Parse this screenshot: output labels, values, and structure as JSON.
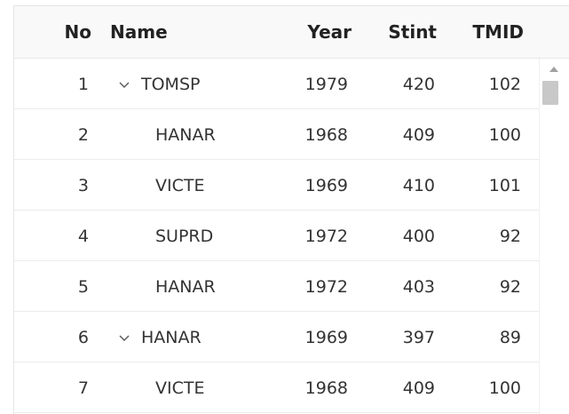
{
  "columns": {
    "no": "No",
    "name": "Name",
    "year": "Year",
    "stint": "Stint",
    "tmid": "TMID"
  },
  "rows": [
    {
      "no": "1",
      "name": "TOMSP",
      "year": "1979",
      "stint": "420",
      "tmid": "102",
      "expandable": true
    },
    {
      "no": "2",
      "name": "HANAR",
      "year": "1968",
      "stint": "409",
      "tmid": "100",
      "expandable": false
    },
    {
      "no": "3",
      "name": "VICTE",
      "year": "1969",
      "stint": "410",
      "tmid": "101",
      "expandable": false
    },
    {
      "no": "4",
      "name": "SUPRD",
      "year": "1972",
      "stint": "400",
      "tmid": "92",
      "expandable": false
    },
    {
      "no": "5",
      "name": "HANAR",
      "year": "1972",
      "stint": "403",
      "tmid": "92",
      "expandable": false
    },
    {
      "no": "6",
      "name": "HANAR",
      "year": "1969",
      "stint": "397",
      "tmid": "89",
      "expandable": true
    },
    {
      "no": "7",
      "name": "VICTE",
      "year": "1968",
      "stint": "409",
      "tmid": "100",
      "expandable": false
    }
  ],
  "icons": {
    "expand": "chevron-down-icon",
    "scroll_up": "caret-up-icon"
  },
  "colors": {
    "header_bg": "#f9f9f9",
    "row_border": "#ececec",
    "scroll_thumb": "#c8c8c8"
  }
}
